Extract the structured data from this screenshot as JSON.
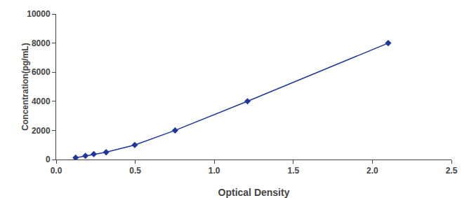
{
  "chart_data": {
    "type": "line",
    "xlabel": "Optical Density",
    "ylabel": "Concentration(pg/mL)",
    "x": [
      0.123,
      0.185,
      0.238,
      0.316,
      0.497,
      0.752,
      1.21,
      2.1
    ],
    "values": [
      125,
      250,
      375,
      500,
      1000,
      2000,
      4000,
      8000
    ],
    "color": "#1e3799",
    "marker": "diamond",
    "line_style": "solid",
    "xlim": [
      0,
      2.5
    ],
    "ylim": [
      0,
      10000
    ],
    "xticks": [
      {
        "value": 0,
        "label": "0.0"
      },
      0.5,
      {
        "value": 1.0,
        "label": "1.0"
      },
      1.5,
      {
        "value": 2.0,
        "label": "2.0"
      },
      2.5
    ],
    "yticks": [
      0,
      2000,
      4000,
      6000,
      8000,
      10000
    ],
    "grid": false
  }
}
